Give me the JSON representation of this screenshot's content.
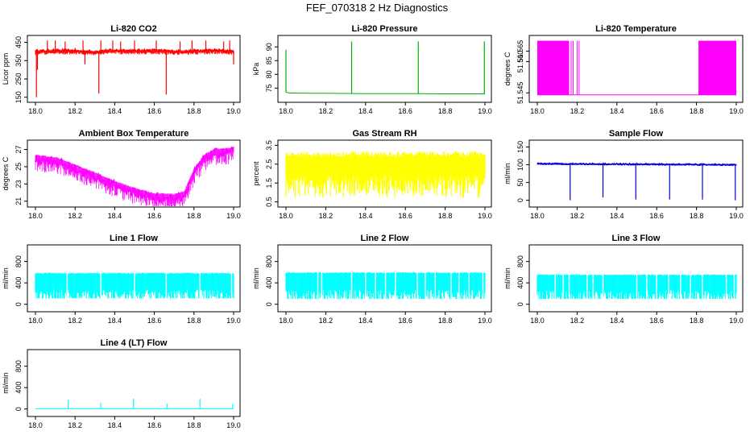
{
  "title": "FEF_070318  2 Hz Diagnostics",
  "chart_data": [
    {
      "name": "li820-co2",
      "type": "line",
      "title": "Li-820 CO2",
      "ylabel": "Licor ppm",
      "color": "#ff0000",
      "xlim": [
        18.0,
        19.0
      ],
      "xticks": [
        "18.0",
        "18.2",
        "18.4",
        "18.6",
        "18.8",
        "19.0"
      ],
      "ylim": [
        140,
        470
      ],
      "yticks": [
        "150",
        "250",
        "350",
        "450"
      ],
      "series_style": "noisy",
      "x": [
        18.0,
        18.1,
        18.2,
        18.3,
        18.4,
        18.5,
        18.6,
        18.7,
        18.8,
        18.9,
        19.0
      ],
      "values": [
        400,
        403,
        402,
        397,
        405,
        403,
        404,
        399,
        401,
        405,
        400
      ],
      "spread": [
        10,
        10
      ],
      "spikes": [
        {
          "x": 18.005,
          "y": 150
        },
        {
          "x": 18.01,
          "y": 300
        },
        {
          "x": 18.06,
          "y": 460
        },
        {
          "x": 18.1,
          "y": 460
        },
        {
          "x": 18.15,
          "y": 455
        },
        {
          "x": 18.24,
          "y": 460
        },
        {
          "x": 18.25,
          "y": 330
        },
        {
          "x": 18.32,
          "y": 170
        },
        {
          "x": 18.33,
          "y": 460
        },
        {
          "x": 18.39,
          "y": 460
        },
        {
          "x": 18.43,
          "y": 455
        },
        {
          "x": 18.5,
          "y": 460
        },
        {
          "x": 18.61,
          "y": 460
        },
        {
          "x": 18.66,
          "y": 165
        },
        {
          "x": 18.73,
          "y": 455
        },
        {
          "x": 18.79,
          "y": 460
        },
        {
          "x": 18.86,
          "y": 460
        },
        {
          "x": 18.95,
          "y": 455
        },
        {
          "x": 18.98,
          "y": 460
        },
        {
          "x": 19.0,
          "y": 330
        }
      ]
    },
    {
      "name": "li820-pressure",
      "type": "line",
      "title": "Li-820 Pressure",
      "ylabel": "kPa",
      "color": "#00b000",
      "xlim": [
        18.0,
        19.0
      ],
      "xticks": [
        "18.0",
        "18.2",
        "18.4",
        "18.6",
        "18.8",
        "19.0"
      ],
      "ylim": [
        71,
        93
      ],
      "yticks": [
        "75",
        "80",
        "85",
        "90"
      ],
      "series_style": "line",
      "x": [
        18.0,
        18.02,
        18.2,
        18.4,
        18.6,
        18.8,
        19.0
      ],
      "values": [
        73.5,
        73.2,
        73.1,
        73.0,
        73.0,
        72.9,
        72.9
      ],
      "spikes": [
        {
          "x": 18.0,
          "y": 89
        },
        {
          "x": 18.33,
          "y": 92
        },
        {
          "x": 18.665,
          "y": 92
        },
        {
          "x": 18.997,
          "y": 92
        }
      ]
    },
    {
      "name": "li820-temperature",
      "type": "line",
      "title": "Li-820 Temperature",
      "ylabel": "degrees C",
      "color": "#ff00ff",
      "xlim": [
        18.0,
        19.0
      ],
      "xticks": [
        "18.0",
        "18.2",
        "18.4",
        "18.6",
        "18.8",
        "19.0"
      ],
      "ylim": [
        51.542,
        51.571
      ],
      "yticks": [
        "51.545",
        "51.560",
        "51.565"
      ],
      "series_style": "line",
      "x": [
        18.0,
        19.0
      ],
      "values": [
        51.544,
        51.544
      ],
      "bands": [
        {
          "x0": 18.0,
          "x1": 18.16,
          "y0": 51.544,
          "y1": 51.57
        },
        {
          "x0": 18.81,
          "x1": 19.0,
          "y0": 51.544,
          "y1": 51.57
        }
      ]
    },
    {
      "name": "ambient-box-temperature",
      "type": "line",
      "title": "Ambient Box Temperature",
      "ylabel": "degrees C",
      "color": "#ff00ff",
      "xlim": [
        18.0,
        19.0
      ],
      "xticks": [
        "18.0",
        "18.2",
        "18.4",
        "18.6",
        "18.8",
        "19.0"
      ],
      "ylim": [
        20.7,
        27.7
      ],
      "yticks": [
        "21",
        "23",
        "25",
        "27"
      ],
      "series_style": "noisy",
      "x": [
        18.0,
        18.1,
        18.2,
        18.3,
        18.4,
        18.5,
        18.6,
        18.7,
        18.75,
        18.8,
        18.85,
        18.9,
        19.0
      ],
      "values": [
        26.2,
        26.0,
        25.1,
        24.2,
        23.2,
        22.4,
        21.8,
        21.7,
        22.0,
        24.6,
        26.2,
        26.9,
        27.1
      ],
      "spread": [
        0.9,
        0.2
      ]
    },
    {
      "name": "gas-stream-rh",
      "type": "area",
      "title": "Gas Stream RH",
      "ylabel": "percent",
      "color": "#ffff00",
      "xlim": [
        18.0,
        19.0
      ],
      "xticks": [
        "18.0",
        "18.2",
        "18.4",
        "18.6",
        "18.8",
        "19.0"
      ],
      "ylim": [
        0.4,
        3.6
      ],
      "yticks": [
        "0.5",
        "1.5",
        "2.5",
        "3.5"
      ],
      "series_style": "band",
      "x": [
        18.0,
        19.0
      ],
      "upper": [
        3.15,
        3.2
      ],
      "lower": [
        0.7,
        0.7
      ]
    },
    {
      "name": "sample-flow",
      "type": "line",
      "title": "Sample Flow",
      "ylabel": "ml/min",
      "color": "#0000dd",
      "xlim": [
        18.0,
        19.0
      ],
      "xticks": [
        "18.0",
        "18.2",
        "18.4",
        "18.6",
        "18.8",
        "19.0"
      ],
      "ylim": [
        -10,
        160
      ],
      "yticks": [
        "0",
        "50",
        "100",
        "150"
      ],
      "series_style": "noisy",
      "x": [
        18.0,
        19.0
      ],
      "values": [
        103,
        100
      ],
      "spread": [
        2,
        2
      ],
      "spikes": [
        {
          "x": 18.165,
          "y": 0
        },
        {
          "x": 18.33,
          "y": 8
        },
        {
          "x": 18.495,
          "y": 2
        },
        {
          "x": 18.665,
          "y": 2
        },
        {
          "x": 18.83,
          "y": 2
        },
        {
          "x": 18.995,
          "y": 0
        }
      ]
    },
    {
      "name": "line-1-flow",
      "type": "area",
      "title": "Line 1 Flow",
      "ylabel": "ml/min",
      "color": "#00ffff",
      "xlim": [
        18.0,
        19.0
      ],
      "xticks": [
        "18.0",
        "18.2",
        "18.4",
        "18.6",
        "18.8",
        "19.0"
      ],
      "ylim": [
        -80,
        1050
      ],
      "yticks": [
        "0",
        "400",
        "800"
      ],
      "series_style": "band",
      "x": [
        18.0,
        19.0
      ],
      "upper": [
        590,
        590
      ],
      "lower": [
        110,
        110
      ],
      "gaps": [
        18.16,
        18.33,
        18.5,
        18.66,
        18.83,
        18.99
      ]
    },
    {
      "name": "line-2-flow",
      "type": "area",
      "title": "Line 2 Flow",
      "ylabel": "ml/min",
      "color": "#00ffff",
      "xlim": [
        18.0,
        19.0
      ],
      "xticks": [
        "18.0",
        "18.2",
        "18.4",
        "18.6",
        "18.8",
        "19.0"
      ],
      "ylim": [
        -80,
        1050
      ],
      "yticks": [
        "0",
        "400",
        "800"
      ],
      "series_style": "band",
      "x": [
        18.0,
        19.0
      ],
      "upper": [
        600,
        600
      ],
      "lower": [
        100,
        100
      ],
      "gaps": [
        18.16,
        18.18,
        18.33,
        18.4,
        18.45,
        18.5,
        18.55,
        18.66,
        18.7,
        18.75,
        18.83,
        18.87,
        18.92,
        18.99
      ]
    },
    {
      "name": "line-3-flow",
      "type": "area",
      "title": "Line 3 Flow",
      "ylabel": "ml/min",
      "color": "#00ffff",
      "xlim": [
        18.0,
        19.0
      ],
      "xticks": [
        "18.0",
        "18.2",
        "18.4",
        "18.6",
        "18.8",
        "19.0"
      ],
      "ylim": [
        -80,
        1050
      ],
      "yticks": [
        "0",
        "400",
        "800"
      ],
      "series_style": "band",
      "x": [
        18.0,
        19.0
      ],
      "upper": [
        560,
        560
      ],
      "lower": [
        100,
        100
      ],
      "gaps": [
        18.09,
        18.13,
        18.16,
        18.25,
        18.28,
        18.33,
        18.5,
        18.55,
        18.6,
        18.66,
        18.72,
        18.77,
        18.83,
        18.95,
        18.99
      ]
    },
    {
      "name": "line-4-lt-flow",
      "type": "line",
      "title": "Line 4 (LT) Flow",
      "ylabel": "ml/min",
      "color": "#00ffff",
      "xlim": [
        18.0,
        19.0
      ],
      "xticks": [
        "18.0",
        "18.2",
        "18.4",
        "18.6",
        "18.8",
        "19.0"
      ],
      "ylim": [
        -80,
        1050
      ],
      "yticks": [
        "0",
        "400",
        "800"
      ],
      "series_style": "line",
      "x": [
        18.0,
        19.0
      ],
      "values": [
        5,
        5
      ],
      "spikes": [
        {
          "x": 18.165,
          "y": 170
        },
        {
          "x": 18.33,
          "y": 110
        },
        {
          "x": 18.495,
          "y": 190
        },
        {
          "x": 18.665,
          "y": 100
        },
        {
          "x": 18.83,
          "y": 190
        },
        {
          "x": 18.995,
          "y": 95
        }
      ]
    }
  ]
}
